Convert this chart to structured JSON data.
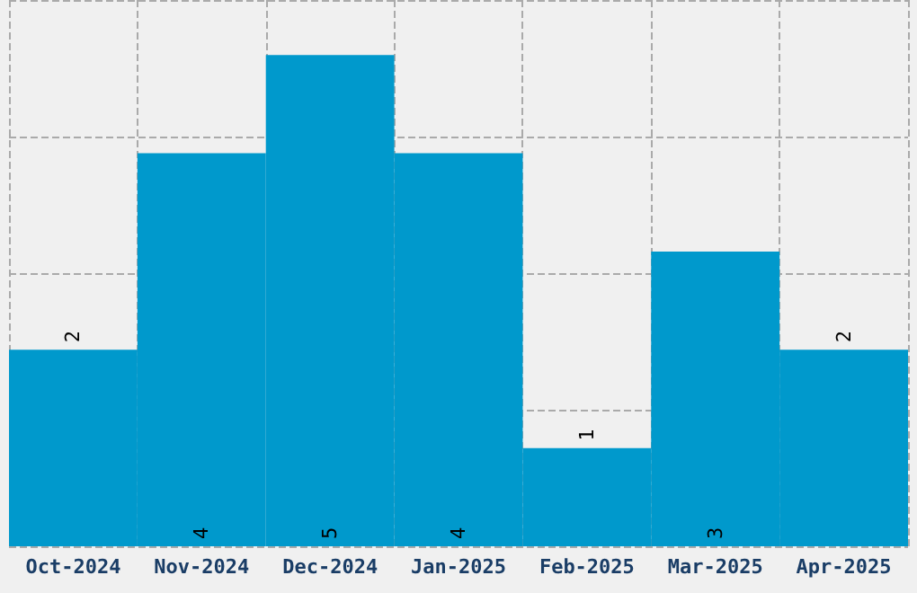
{
  "chart_data": {
    "type": "bar",
    "categories": [
      "Oct-2024",
      "Nov-2024",
      "Dec-2024",
      "Jan-2025",
      "Feb-2025",
      "Mar-2025",
      "Apr-2025"
    ],
    "values": [
      2,
      4,
      5,
      4,
      1,
      3,
      2
    ],
    "color": "#0099cc",
    "ylim": [
      0,
      5.56
    ],
    "yticks": [
      {
        "value": 0,
        "label": null
      },
      {
        "value": 1.39,
        "label": null
      },
      {
        "value": 2.78,
        "label": null
      },
      {
        "value": 4.17,
        "label": null
      },
      {
        "value": 5.56,
        "label": null
      }
    ],
    "tick_labels": "x",
    "grid": true,
    "data_labels": true
  }
}
